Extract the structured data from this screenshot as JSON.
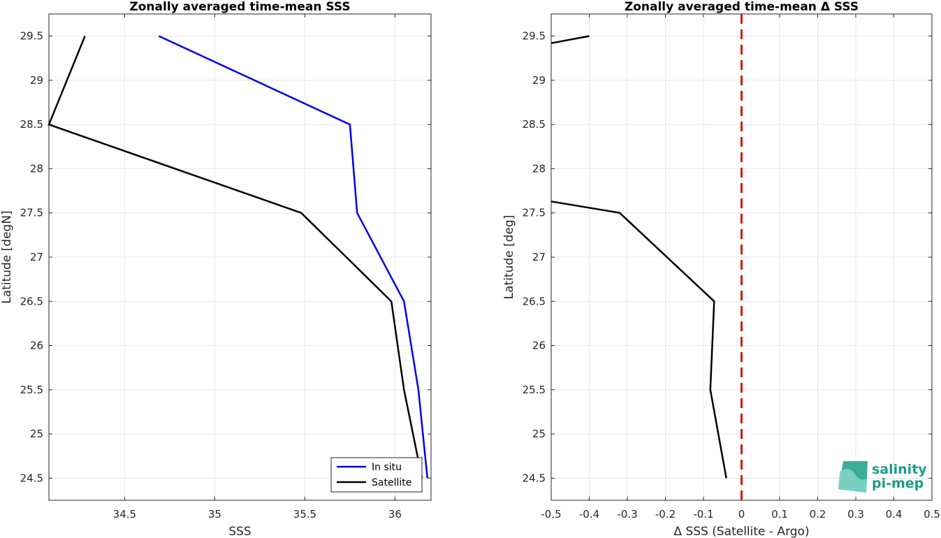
{
  "chart_data": [
    {
      "type": "line",
      "title": "Zonally averaged time-mean SSS",
      "xlabel": "SSS",
      "ylabel": "Latitude [degN]",
      "xlim": [
        34.08,
        36.2
      ],
      "ylim": [
        24.25,
        29.75
      ],
      "xticks": [
        34.5,
        35,
        35.5,
        36
      ],
      "xtick_labels": [
        "34.5",
        "35",
        "35.5",
        "36"
      ],
      "yticks": [
        24.5,
        25,
        25.5,
        26,
        26.5,
        27,
        27.5,
        28,
        28.5,
        29,
        29.5
      ],
      "ytick_labels": [
        "24.5",
        "25",
        "25.5",
        "26",
        "26.5",
        "27",
        "27.5",
        "28",
        "28.5",
        "29",
        "29.5"
      ],
      "grid": true,
      "legend": "bottom-right",
      "series": [
        {
          "name": "In situ",
          "color": "#0000ee",
          "x": [
            34.69,
            35.75,
            35.79,
            36.05,
            36.13,
            36.18
          ],
          "y": [
            29.5,
            28.5,
            27.5,
            26.5,
            25.5,
            24.5
          ]
        },
        {
          "name": "Satellite",
          "color": "#000000",
          "x": [
            34.28,
            34.08,
            35.48,
            35.98,
            36.05,
            36.15
          ],
          "y": [
            29.5,
            28.5,
            27.5,
            26.5,
            25.5,
            24.5
          ]
        }
      ]
    },
    {
      "type": "line",
      "title": "Zonally averaged time-mean Δ SSS",
      "xlabel": "Δ SSS (Satellite - Argo)",
      "ylabel": "Latitude [deg]",
      "xlim": [
        -0.5,
        0.5
      ],
      "ylim": [
        24.25,
        29.75
      ],
      "xticks": [
        -0.5,
        -0.4,
        -0.3,
        -0.2,
        -0.1,
        0,
        0.1,
        0.2,
        0.3,
        0.4,
        0.5
      ],
      "xtick_labels": [
        "-0.5",
        "-0.4",
        "-0.3",
        "-0.2",
        "-0.1",
        "0",
        "0.1",
        "0.2",
        "0.3",
        "0.4",
        "0.5"
      ],
      "yticks": [
        24.5,
        25,
        25.5,
        26,
        26.5,
        27,
        27.5,
        28,
        28.5,
        29,
        29.5
      ],
      "ytick_labels": [
        "24.5",
        "25",
        "25.5",
        "26",
        "26.5",
        "27",
        "27.5",
        "28",
        "28.5",
        "29",
        "29.5"
      ],
      "grid": true,
      "zero_line_color": "#dd1111",
      "series": [
        {
          "color": "#000000",
          "segments": [
            {
              "x": [
                -0.5,
                -0.4
              ],
              "y": [
                29.42,
                29.5
              ]
            },
            {
              "x": [
                -0.5,
                -0.32,
                -0.072,
                -0.082,
                -0.04
              ],
              "y": [
                27.63,
                27.5,
                26.5,
                25.5,
                24.5
              ]
            }
          ]
        }
      ]
    }
  ],
  "logo": {
    "line1": "salinity",
    "line2": "pi-mep",
    "color": "#1a9e8a"
  }
}
